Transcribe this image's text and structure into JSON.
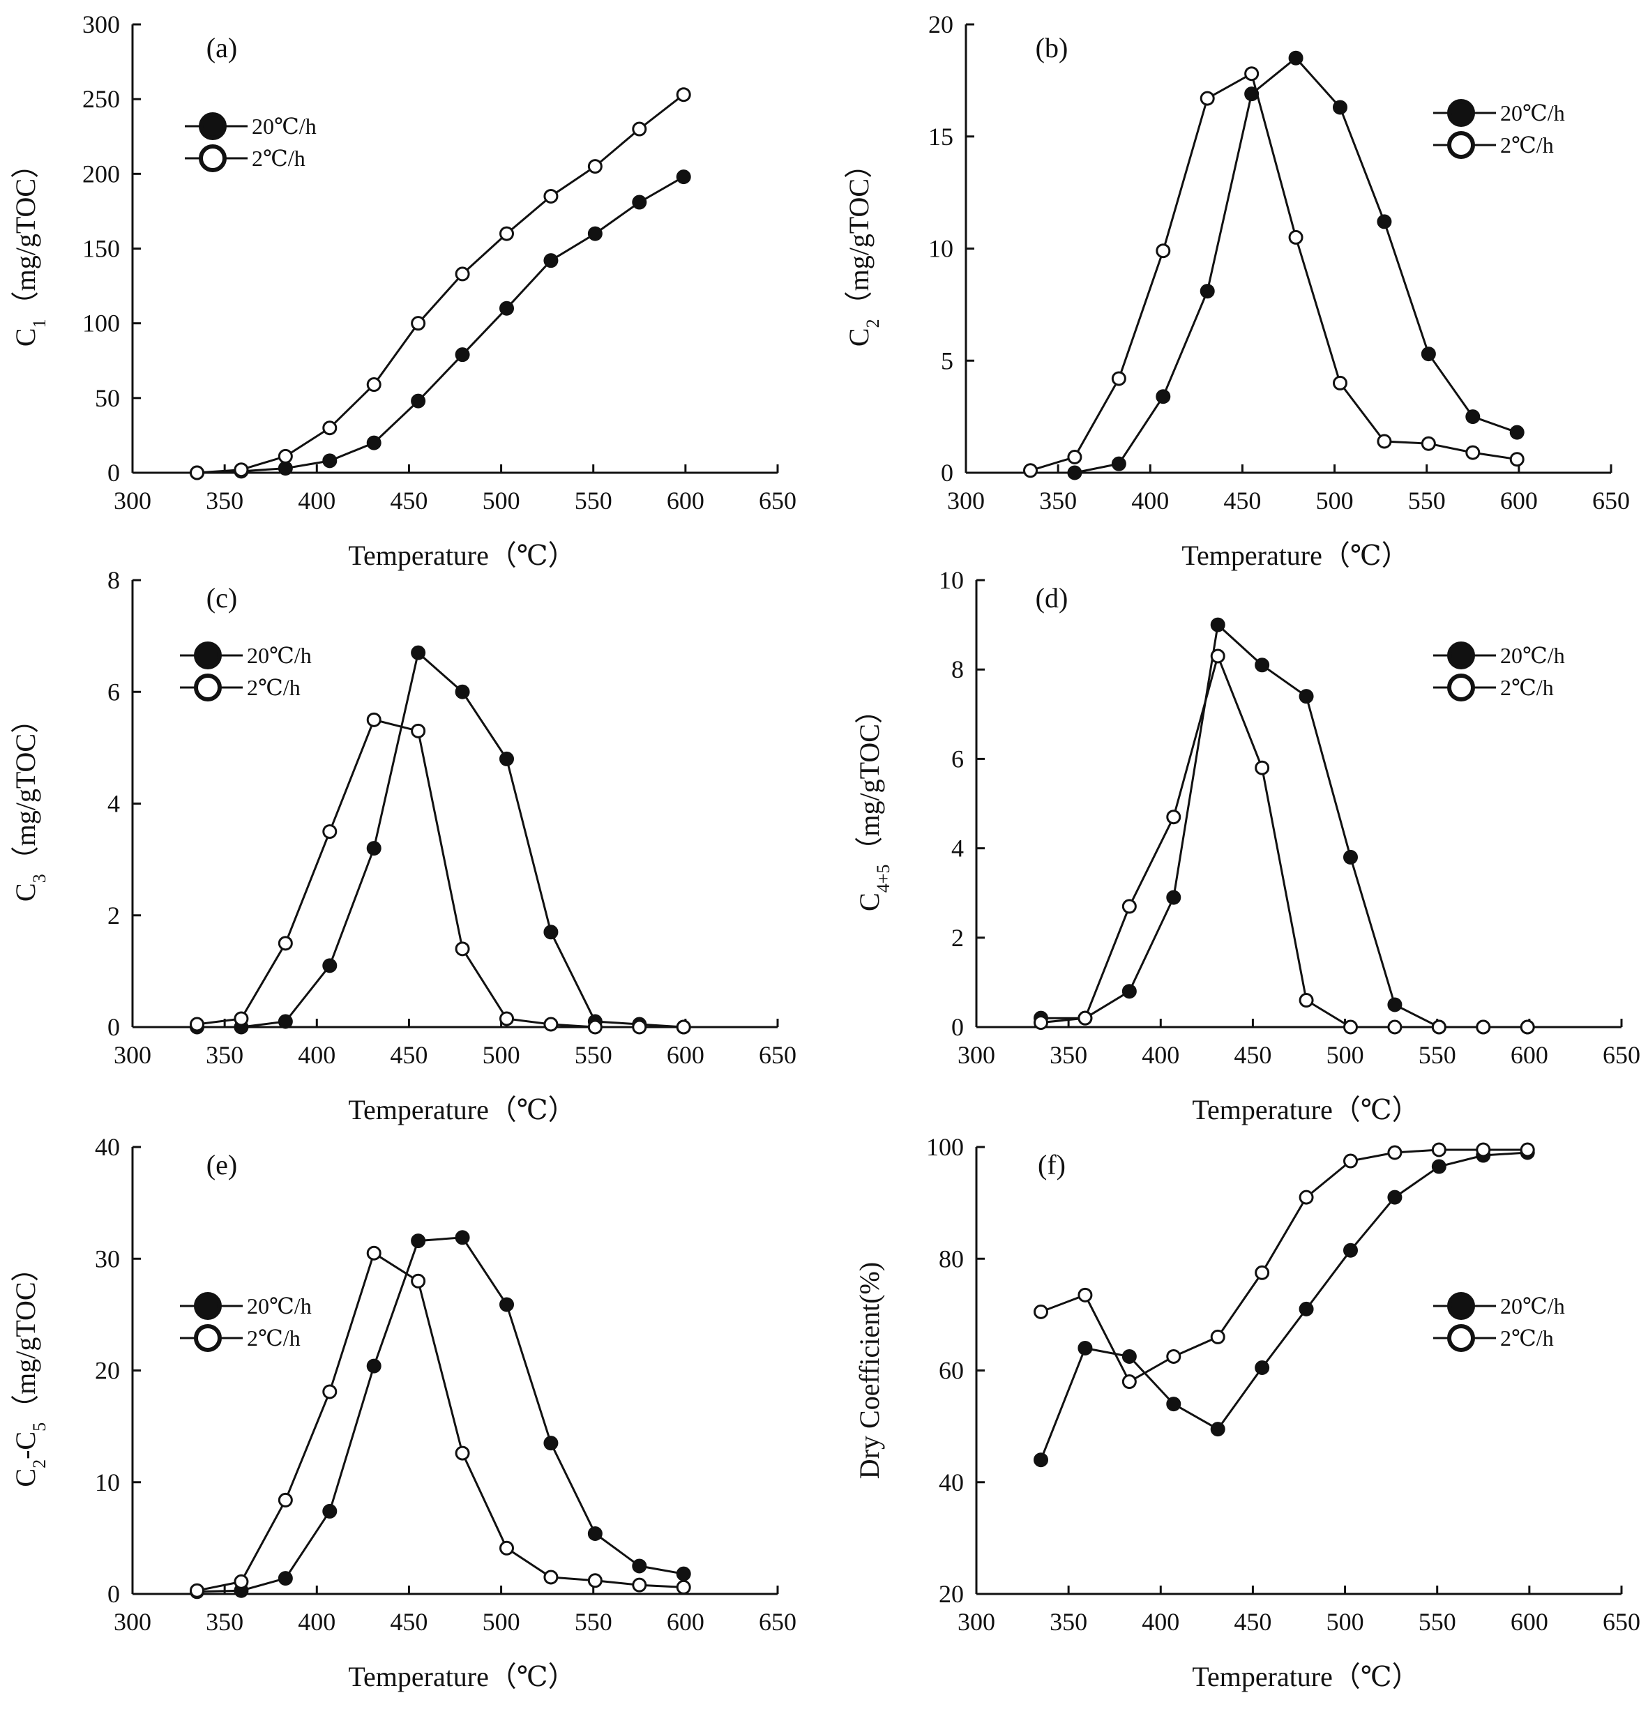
{
  "chart_data": [
    {
      "type": "line",
      "panel": "(a)",
      "xlabel": "Temperature（℃）",
      "ylabel": "C1（mg/gTOC）",
      "ylabel_main": "C",
      "ylabel_sub": "1",
      "ylabel_unit": "（mg/gTOC）",
      "xlim": [
        300,
        650
      ],
      "ylim": [
        0,
        300
      ],
      "xticks": [
        300,
        350,
        400,
        450,
        500,
        550,
        600,
        650
      ],
      "yticks": [
        0,
        50,
        100,
        150,
        200,
        250,
        300
      ],
      "legend": "top-left",
      "series": [
        {
          "name": "20℃/h",
          "marker": "filled",
          "x": [
            335,
            359,
            383,
            407,
            431,
            455,
            479,
            503,
            527,
            551,
            575,
            599
          ],
          "y": [
            0,
            1,
            3,
            8,
            20,
            48,
            79,
            110,
            142,
            160,
            181,
            198
          ]
        },
        {
          "name": "2℃/h",
          "marker": "open",
          "x": [
            335,
            359,
            383,
            407,
            431,
            455,
            479,
            503,
            527,
            551,
            575,
            599
          ],
          "y": [
            0,
            2,
            11,
            30,
            59,
            100,
            133,
            160,
            185,
            205,
            230,
            253
          ]
        }
      ]
    },
    {
      "type": "line",
      "panel": "(b)",
      "xlabel": "Temperature（℃）",
      "ylabel": "C2（mg/gTOC）",
      "ylabel_main": "C",
      "ylabel_sub": "2",
      "ylabel_unit": "（mg/gTOC）",
      "xlim": [
        300,
        650
      ],
      "ylim": [
        0,
        20
      ],
      "xticks": [
        300,
        350,
        400,
        450,
        500,
        550,
        600,
        650
      ],
      "yticks": [
        0,
        5,
        10,
        15,
        20
      ],
      "legend": "top-right",
      "series": [
        {
          "name": "20℃/h",
          "marker": "filled",
          "x": [
            359,
            383,
            407,
            431,
            455,
            479,
            503,
            527,
            551,
            575,
            599
          ],
          "y": [
            0,
            0.4,
            3.4,
            8.1,
            16.9,
            18.5,
            16.3,
            11.2,
            5.3,
            2.5,
            1.8
          ]
        },
        {
          "name": "2℃/h",
          "marker": "open",
          "x": [
            335,
            359,
            383,
            407,
            431,
            455,
            479,
            503,
            527,
            551,
            575,
            599
          ],
          "y": [
            0.1,
            0.7,
            4.2,
            9.9,
            16.7,
            17.8,
            10.5,
            4.0,
            1.4,
            1.3,
            0.9,
            0.6
          ]
        }
      ]
    },
    {
      "type": "line",
      "panel": "(c)",
      "xlabel": "Temperature（℃）",
      "ylabel": "C3（mg/gTOC）",
      "ylabel_main": "C",
      "ylabel_sub": "3",
      "ylabel_unit": "（mg/gTOC）",
      "xlim": [
        300,
        650
      ],
      "ylim": [
        0,
        8
      ],
      "xticks": [
        300,
        350,
        400,
        450,
        500,
        550,
        600,
        650
      ],
      "yticks": [
        0,
        2,
        4,
        6,
        8
      ],
      "legend": "top-left",
      "series": [
        {
          "name": "20℃/h",
          "marker": "filled",
          "x": [
            335,
            359,
            383,
            407,
            431,
            455,
            479,
            503,
            527,
            551,
            575,
            599
          ],
          "y": [
            0,
            0,
            0.1,
            1.1,
            3.2,
            6.7,
            6.0,
            4.8,
            1.7,
            0.1,
            0.05,
            0
          ]
        },
        {
          "name": "2℃/h",
          "marker": "open",
          "x": [
            335,
            359,
            383,
            407,
            431,
            455,
            479,
            503,
            527,
            551,
            575,
            599
          ],
          "y": [
            0.05,
            0.15,
            1.5,
            3.5,
            5.5,
            5.3,
            1.4,
            0.15,
            0.05,
            0,
            0,
            0
          ]
        }
      ]
    },
    {
      "type": "line",
      "panel": "(d)",
      "xlabel": "Temperature（℃）",
      "ylabel": "C4+5（mg/gTOC）",
      "ylabel_main": "C",
      "ylabel_sub": "4+5",
      "ylabel_unit": "（mg/gTOC）",
      "xlim": [
        300,
        650
      ],
      "ylim": [
        0,
        10
      ],
      "xticks": [
        300,
        350,
        400,
        450,
        500,
        550,
        600,
        650
      ],
      "yticks": [
        0,
        2,
        4,
        6,
        8,
        10
      ],
      "legend": "top-right",
      "series": [
        {
          "name": "20℃/h",
          "marker": "filled",
          "x": [
            335,
            359,
            383,
            407,
            431,
            455,
            479,
            503,
            527,
            551,
            575,
            599
          ],
          "y": [
            0.2,
            0.2,
            0.8,
            2.9,
            9.0,
            8.1,
            7.4,
            3.8,
            0.5,
            0,
            0,
            0
          ]
        },
        {
          "name": "2℃/h",
          "marker": "open",
          "x": [
            335,
            359,
            383,
            407,
            431,
            455,
            479,
            503,
            527,
            551,
            575,
            599
          ],
          "y": [
            0.1,
            0.2,
            2.7,
            4.7,
            8.3,
            5.8,
            0.6,
            0,
            0,
            0,
            0,
            0
          ]
        }
      ]
    },
    {
      "type": "line",
      "panel": "(e)",
      "xlabel": "Temperature（℃）",
      "ylabel": "C2-C5（mg/gTOC）",
      "ylabel_main": "C",
      "ylabel_sub": "2",
      "ylabel_mid": "-C",
      "ylabel_sub2": "5",
      "ylabel_unit": "（mg/gTOC）",
      "xlim": [
        300,
        650
      ],
      "ylim": [
        0,
        40
      ],
      "xticks": [
        300,
        350,
        400,
        450,
        500,
        550,
        600,
        650
      ],
      "yticks": [
        0,
        10,
        20,
        30,
        40
      ],
      "legend": "middle-left",
      "series": [
        {
          "name": "20℃/h",
          "marker": "filled",
          "x": [
            335,
            359,
            383,
            407,
            431,
            455,
            479,
            503,
            527,
            551,
            575,
            599
          ],
          "y": [
            0.2,
            0.3,
            1.4,
            7.4,
            20.4,
            31.6,
            31.9,
            25.9,
            13.5,
            5.4,
            2.5,
            1.8
          ]
        },
        {
          "name": "2℃/h",
          "marker": "open",
          "x": [
            335,
            359,
            383,
            407,
            431,
            455,
            479,
            503,
            527,
            551,
            575,
            599
          ],
          "y": [
            0.3,
            1.1,
            8.4,
            18.1,
            30.5,
            28.0,
            12.6,
            4.1,
            1.5,
            1.2,
            0.8,
            0.6
          ]
        }
      ]
    },
    {
      "type": "line",
      "panel": "(f)",
      "xlabel": "Temperature（℃）",
      "ylabel": "Dry Coefficient(%)",
      "ylabel_main": "Dry Coefficient(%)",
      "xlim": [
        300,
        650
      ],
      "ylim": [
        20,
        100
      ],
      "xticks": [
        300,
        350,
        400,
        450,
        500,
        550,
        600,
        650
      ],
      "yticks": [
        20,
        40,
        60,
        80,
        100
      ],
      "legend": "middle-right",
      "series": [
        {
          "name": "20℃/h",
          "marker": "filled",
          "x": [
            335,
            359,
            383,
            407,
            431,
            455,
            479,
            503,
            527,
            551,
            575,
            599
          ],
          "y": [
            44,
            64,
            62.5,
            54,
            49.5,
            60.5,
            71,
            81.5,
            91,
            96.5,
            98.5,
            99
          ]
        },
        {
          "name": "2℃/h",
          "marker": "open",
          "x": [
            335,
            359,
            383,
            407,
            431,
            455,
            479,
            503,
            527,
            551,
            575,
            599
          ],
          "y": [
            70.5,
            73.5,
            58,
            62.5,
            66,
            77.5,
            91,
            97.5,
            99,
            99.5,
            99.5,
            99.5
          ]
        }
      ]
    }
  ]
}
